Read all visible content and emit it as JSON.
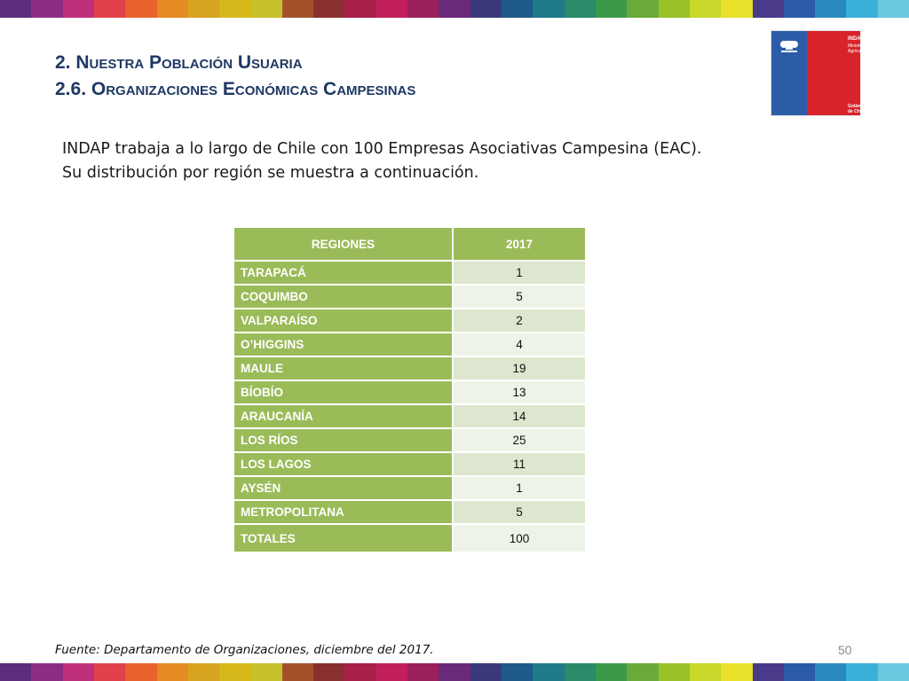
{
  "header": {
    "title_line1": "2. Nuestra Población Usuaria",
    "title_line2": "2.6. Organizaciones Económicas Campesinas"
  },
  "logo": {
    "brand": "INDAP",
    "ministry": "Ministerio de Agricultura",
    "government": "Gobierno de Chile"
  },
  "intro": {
    "line1": "INDAP trabaja a lo largo de Chile con 100 Empresas Asociativas Campesina (EAC).",
    "line2": "Su distribución por región se muestra a continuación."
  },
  "table": {
    "headers": [
      "REGIONES",
      "2017"
    ],
    "rows": [
      {
        "region": "TARAPACÁ",
        "value": "1"
      },
      {
        "region": "COQUIMBO",
        "value": "5"
      },
      {
        "region": "VALPARAÍSO",
        "value": "2"
      },
      {
        "region": "O’HIGGINS",
        "value": "4"
      },
      {
        "region": "MAULE",
        "value": "19"
      },
      {
        "region": "BÍOBÍO",
        "value": "13"
      },
      {
        "region": "ARAUCANÍA",
        "value": "14"
      },
      {
        "region": "LOS RÍOS",
        "value": "25"
      },
      {
        "region": "LOS LAGOS",
        "value": "11"
      },
      {
        "region": "AYSÉN",
        "value": "1"
      },
      {
        "region": "METROPOLITANA",
        "value": "5"
      }
    ],
    "total": {
      "label": "TOTALES",
      "value": "100"
    }
  },
  "footer": {
    "source": "Fuente: Departamento de Organizaciones, diciembre del 2017.",
    "page_number": "50"
  },
  "colors": {
    "title": "#1f3864",
    "table_header": "#9bbb59",
    "row_odd": "#dde7cf",
    "row_even": "#eef3e8",
    "logo_blue": "#2b5ca8",
    "logo_red": "#d8232a",
    "stripe": [
      "#5c2d7a",
      "#8c2d84",
      "#c0307a",
      "#e0414a",
      "#e8632b",
      "#e48b22",
      "#d8a420",
      "#d6b81a",
      "#c6c02a",
      "#a4512b",
      "#8a2f2f",
      "#a81f4a",
      "#c01f5c",
      "#9a1f5a",
      "#6a2a7a",
      "#3a3a7a",
      "#1f5a8a",
      "#1f7a8a",
      "#2a8a6a",
      "#3a9a4a",
      "#6aaa3a",
      "#9ac02a",
      "#c8d82a",
      "#e8e02a",
      "#4a3a8a",
      "#2a5aa8",
      "#2a8ac0",
      "#3ab0d8",
      "#6ac8e0"
    ]
  }
}
